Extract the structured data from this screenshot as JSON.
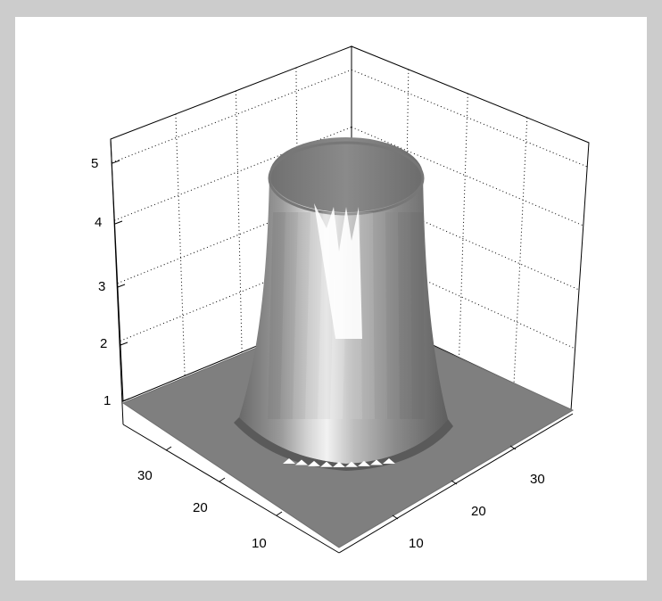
{
  "chart_data": {
    "type": "surface",
    "title": "",
    "xlabel": "",
    "ylabel": "",
    "zlabel": "",
    "x_ticks": [
      "10",
      "20",
      "30"
    ],
    "y_ticks": [
      "10",
      "20",
      "30"
    ],
    "z_ticks": [
      "1",
      "2",
      "3",
      "4",
      "5"
    ],
    "xlim": [
      1,
      40
    ],
    "ylim": [
      1,
      40
    ],
    "zlim": [
      1,
      5.4
    ],
    "base_level": 1,
    "plateau_level": 5.0,
    "plateau_center": [
      20.5,
      20.5
    ],
    "plateau_radius": 10,
    "grid": true,
    "shading": "gray",
    "view": "3d-isometric"
  },
  "colors": {
    "figure_background": "#cccccc",
    "panel_background": "#ffffff",
    "floor": "#7f7f7f",
    "surface_light": "#ffffff",
    "surface_dark": "#5e5e5e",
    "grid": "#000000"
  }
}
